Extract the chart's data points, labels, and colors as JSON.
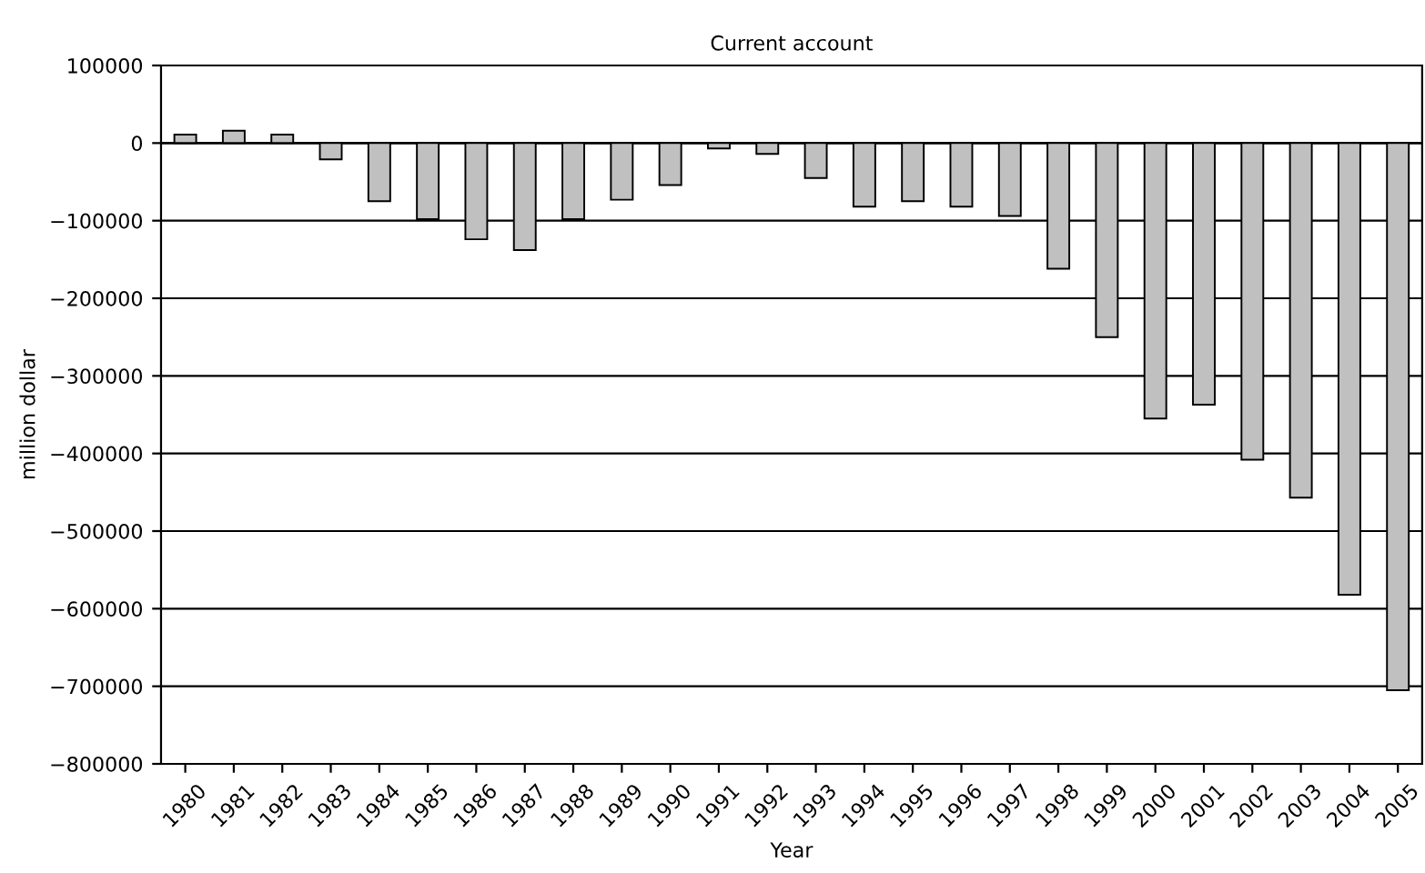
{
  "chart_data": {
    "type": "bar",
    "title": "Current account",
    "xlabel": "Year",
    "ylabel": "million dollar",
    "categories": [
      "1980",
      "1981",
      "1982",
      "1983",
      "1984",
      "1985",
      "1986",
      "1987",
      "1988",
      "1989",
      "1990",
      "1991",
      "1992",
      "1993",
      "1994",
      "1995",
      "1996",
      "1997",
      "1998",
      "1999",
      "2000",
      "2001",
      "2002",
      "2003",
      "2004",
      "2005"
    ],
    "values": [
      11000,
      16000,
      11000,
      -21000,
      -75000,
      -98000,
      -124000,
      -138000,
      -98000,
      -73000,
      -54000,
      -7000,
      -14000,
      -45000,
      -82000,
      -75000,
      -82000,
      -94000,
      -162000,
      -250000,
      -355000,
      -337000,
      -408000,
      -457000,
      -582000,
      -705000
    ],
    "color": "#c0c0c0",
    "ylim": [
      -800000,
      100000
    ],
    "yticks": [
      -800000,
      -700000,
      -600000,
      -500000,
      -400000,
      -300000,
      -200000,
      -100000,
      0,
      100000
    ],
    "grid": "y"
  }
}
